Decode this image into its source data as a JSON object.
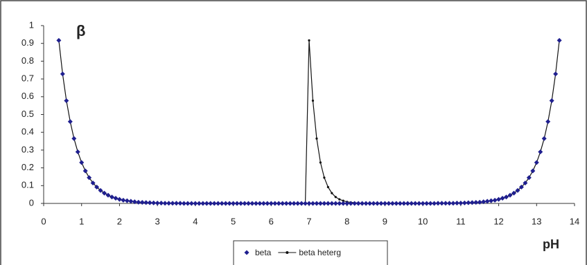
{
  "chart_data": {
    "type": "scatter-line",
    "y_label": "β",
    "x_label": "pH",
    "xlim": [
      0,
      14
    ],
    "ylim": [
      0,
      1
    ],
    "xticks": [
      0,
      1,
      2,
      3,
      4,
      5,
      6,
      7,
      8,
      9,
      10,
      11,
      12,
      13,
      14
    ],
    "yticks": [
      0,
      0.1,
      0.2,
      0.3,
      0.4,
      0.5,
      0.6,
      0.7,
      0.8,
      0.9,
      1
    ],
    "x": [
      0.4,
      0.5,
      0.6,
      0.7,
      0.8,
      0.9,
      1.0,
      1.1,
      1.2,
      1.3,
      1.4,
      1.5,
      1.6,
      1.7,
      1.8,
      1.9,
      2.0,
      2.1,
      2.2,
      2.3,
      2.4,
      2.5,
      2.6,
      2.7,
      2.8,
      2.9,
      3.0,
      3.1,
      3.2,
      3.3,
      3.4,
      3.5,
      3.6,
      3.7,
      3.8,
      3.9,
      4.0,
      4.1,
      4.2,
      4.3,
      4.4,
      4.5,
      4.6,
      4.7,
      4.8,
      4.9,
      5.0,
      5.1,
      5.2,
      5.3,
      5.4,
      5.5,
      5.6,
      5.7,
      5.8,
      5.9,
      6.0,
      6.1,
      6.2,
      6.3,
      6.4,
      6.5,
      6.6,
      6.7,
      6.8,
      6.9,
      7.0,
      7.1,
      7.2,
      7.3,
      7.4,
      7.5,
      7.6,
      7.7,
      7.8,
      7.9,
      8.0,
      8.1,
      8.2,
      8.3,
      8.4,
      8.5,
      8.6,
      8.7,
      8.8,
      8.9,
      9.0,
      9.1,
      9.2,
      9.3,
      9.4,
      9.5,
      9.6,
      9.7,
      9.8,
      9.9,
      10.0,
      10.1,
      10.2,
      10.3,
      10.4,
      10.5,
      10.6,
      10.7,
      10.8,
      10.9,
      11.0,
      11.1,
      11.2,
      11.3,
      11.4,
      11.5,
      11.6,
      11.7,
      11.8,
      11.9,
      12.0,
      12.1,
      12.2,
      12.3,
      12.4,
      12.5,
      12.6,
      12.7,
      12.8,
      12.9,
      13.0,
      13.1,
      13.2,
      13.3,
      13.4,
      13.5,
      13.6
    ],
    "series": [
      {
        "name": "beta heterg",
        "color": "#111111",
        "style": "line",
        "values": [
          0.917,
          0.728,
          0.578,
          0.46,
          0.365,
          0.29,
          0.23,
          0.183,
          0.145,
          0.115,
          0.092,
          0.073,
          0.058,
          0.046,
          0.036,
          0.029,
          0.023,
          0.018,
          0.015,
          0.012,
          0.009,
          0.007,
          0.006,
          0.005,
          0.004,
          0.003,
          0.002,
          0.002,
          0.001,
          0.001,
          0.001,
          0.001,
          0.001,
          0,
          0,
          0,
          0,
          0,
          0,
          0,
          0,
          0,
          0,
          0,
          0,
          0,
          0,
          0,
          0,
          0,
          0,
          0,
          0,
          0,
          0,
          0,
          0,
          0,
          0,
          0,
          0,
          0,
          0,
          0,
          0,
          0,
          0.917,
          0.578,
          0.365,
          0.23,
          0.145,
          0.092,
          0.058,
          0.036,
          0.023,
          0.015,
          0.009,
          0.006,
          0.004,
          0.002,
          0.001,
          0.001,
          0,
          0,
          0,
          0,
          0,
          0,
          0,
          0,
          0,
          0,
          0,
          0,
          0,
          0,
          0,
          0,
          0,
          0,
          0.001,
          0.001,
          0.001,
          0.001,
          0.001,
          0.002,
          0.002,
          0.003,
          0.004,
          0.005,
          0.006,
          0.007,
          0.009,
          0.012,
          0.015,
          0.018,
          0.023,
          0.029,
          0.036,
          0.046,
          0.058,
          0.073,
          0.092,
          0.115,
          0.145,
          0.183,
          0.23,
          0.29,
          0.365,
          0.46,
          0.578,
          0.728,
          0.917
        ]
      },
      {
        "name": "beta",
        "color": "#1f1f8f",
        "style": "diamond",
        "values": [
          0.917,
          0.728,
          0.578,
          0.46,
          0.365,
          0.29,
          0.23,
          0.183,
          0.145,
          0.115,
          0.092,
          0.073,
          0.058,
          0.046,
          0.036,
          0.029,
          0.023,
          0.018,
          0.015,
          0.012,
          0.009,
          0.007,
          0.006,
          0.005,
          0.004,
          0.003,
          0.002,
          0.002,
          0.001,
          0.001,
          0.001,
          0.001,
          0.001,
          0,
          0,
          0,
          0,
          0,
          0,
          0,
          0,
          0,
          0,
          0,
          0,
          0,
          0,
          0,
          0,
          0,
          0,
          0,
          0,
          0,
          0,
          0,
          0,
          0,
          0,
          0,
          0,
          0,
          0,
          0,
          0,
          0,
          0,
          0,
          0,
          0,
          0,
          0,
          0,
          0,
          0,
          0,
          0,
          0,
          0,
          0,
          0,
          0,
          0,
          0,
          0,
          0,
          0,
          0,
          0,
          0,
          0,
          0,
          0,
          0,
          0,
          0,
          0,
          0,
          0,
          0,
          0.001,
          0.001,
          0.001,
          0.001,
          0.001,
          0.002,
          0.002,
          0.003,
          0.004,
          0.005,
          0.006,
          0.007,
          0.009,
          0.012,
          0.015,
          0.018,
          0.023,
          0.029,
          0.036,
          0.046,
          0.058,
          0.073,
          0.092,
          0.115,
          0.145,
          0.183,
          0.23,
          0.29,
          0.365,
          0.46,
          0.578,
          0.728,
          0.917
        ]
      }
    ]
  }
}
